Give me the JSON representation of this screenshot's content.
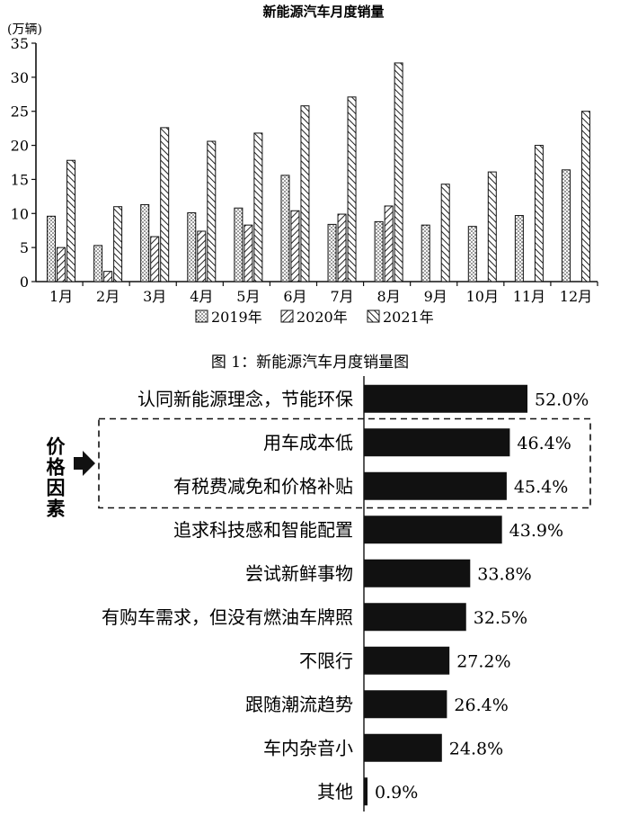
{
  "chart_data": [
    {
      "type": "bar",
      "title": "新能源汽车月度销量",
      "ylabel": "(万辆)",
      "ylim": [
        0,
        35
      ],
      "yticks": [
        "0",
        "5",
        "10",
        "15",
        "20",
        "25",
        "30",
        "35"
      ],
      "categories": [
        "1月",
        "2月",
        "3月",
        "4月",
        "5月",
        "6月",
        "7月",
        "8月",
        "9月",
        "10月",
        "11月",
        "12月"
      ],
      "legend_position": "bottom",
      "series": [
        {
          "name": "2019年",
          "pattern": "dots",
          "values": [
            9.6,
            5.3,
            11.3,
            10.1,
            10.8,
            15.6,
            8.4,
            8.8,
            8.3,
            8.1,
            9.7,
            16.4
          ]
        },
        {
          "name": "2020年",
          "pattern": "hatch",
          "values": [
            5.0,
            1.5,
            6.6,
            7.4,
            8.3,
            10.4,
            9.9,
            11.1,
            null,
            null,
            null,
            null
          ]
        },
        {
          "name": "2021年",
          "pattern": "reverse-hatch",
          "values": [
            17.8,
            11.0,
            22.6,
            20.6,
            21.8,
            25.8,
            27.1,
            32.1,
            14.3,
            16.1,
            20.0,
            25.0
          ]
        }
      ],
      "caption": "图 1：新能源汽车月度销量图"
    },
    {
      "type": "bar",
      "orientation": "horizontal",
      "bar_color": "#111111",
      "categories": [
        "认同新能源理念，节能环保",
        "用车成本低",
        "有税费减免和价格补贴",
        "追求科技感和智能配置",
        "尝试新鲜事物",
        "有购车需求，但没有燃油车牌照",
        "不限行",
        "跟随潮流趋势",
        "车内杂音小",
        "其他"
      ],
      "values": [
        52.0,
        46.4,
        45.4,
        43.9,
        33.8,
        32.5,
        27.2,
        26.4,
        24.8,
        0.9
      ],
      "value_labels": [
        "52.0%",
        "46.4%",
        "45.4%",
        "43.9%",
        "33.8%",
        "32.5%",
        "27.2%",
        "26.4%",
        "24.8%",
        "0.9%"
      ],
      "group_label": "价格因素",
      "group_members": [
        1,
        2
      ]
    }
  ]
}
